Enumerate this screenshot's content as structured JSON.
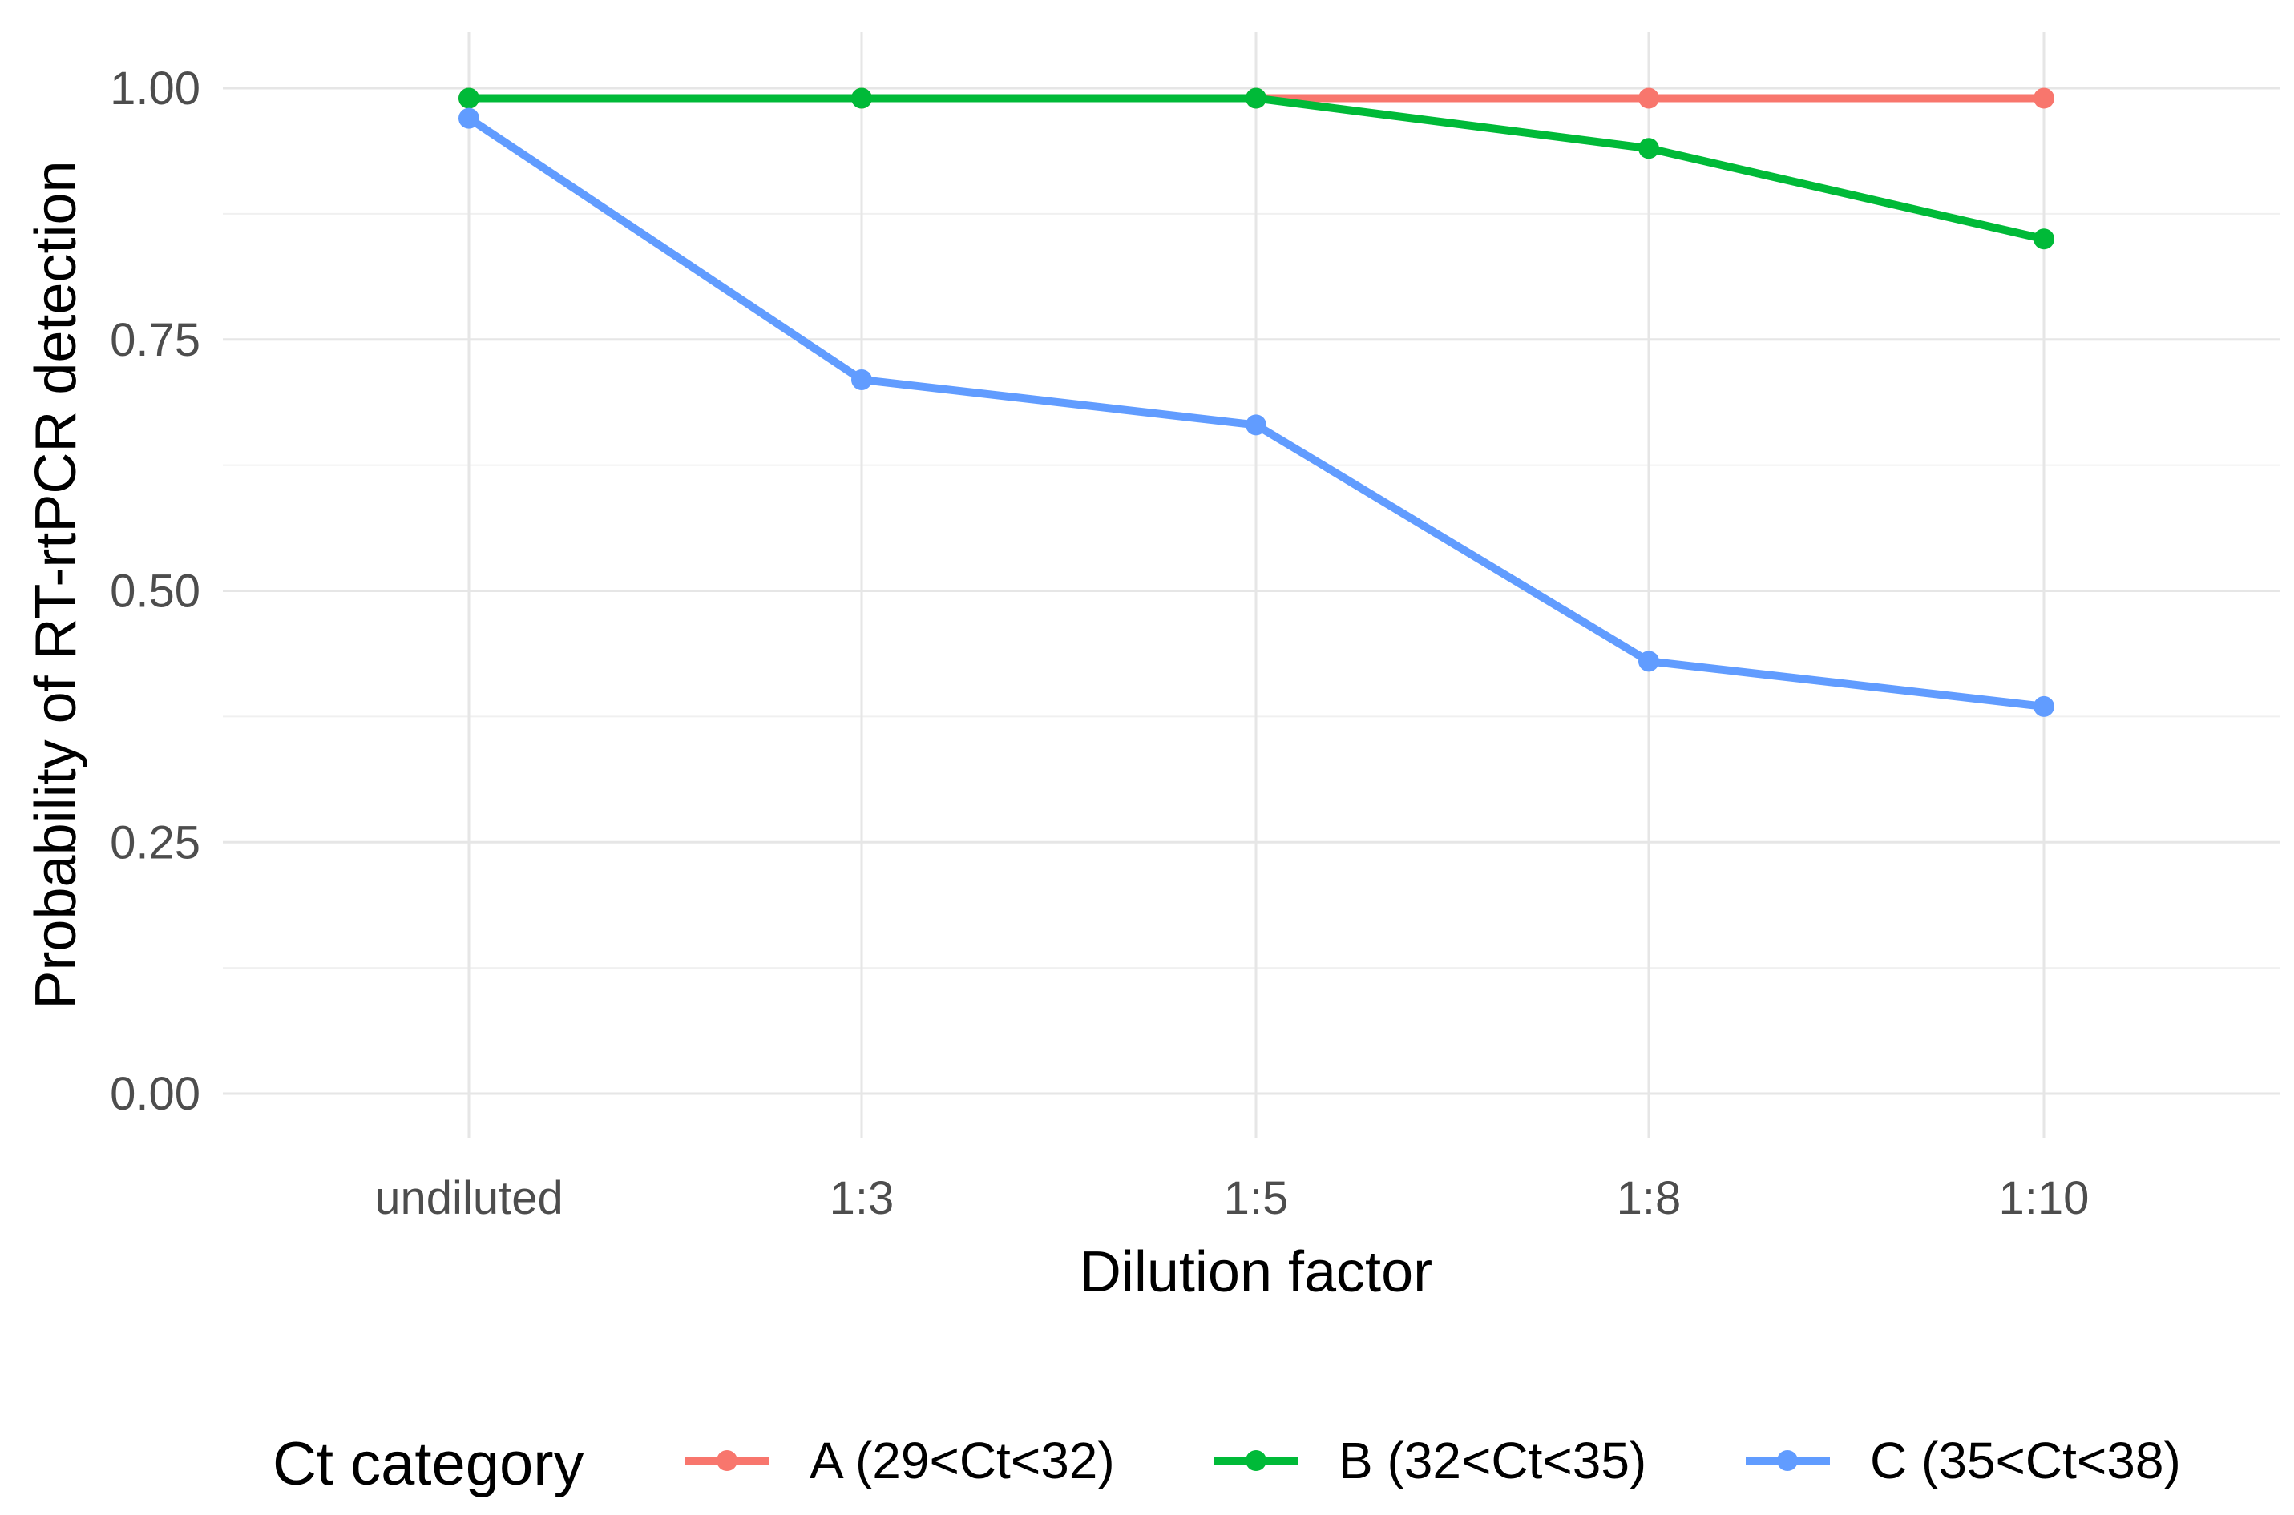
{
  "chart_data": {
    "type": "line",
    "title": "",
    "xlabel": "Dilution factor",
    "ylabel": "Probability of RT-rtPCR detection",
    "categories": [
      "undiluted",
      "1:3",
      "1:5",
      "1:8",
      "1:10"
    ],
    "ylim": [
      0,
      1
    ],
    "yticks": [
      "0.00",
      "0.25",
      "0.50",
      "0.75",
      "1.00"
    ],
    "grid": true,
    "legend": {
      "title": "Ct category",
      "position": "bottom"
    },
    "series": [
      {
        "name": "A (29<Ct<32)",
        "color": "#F8766D",
        "values": [
          0.99,
          0.99,
          0.99,
          0.99,
          0.99
        ]
      },
      {
        "name": "B (32<Ct<35)",
        "color": "#00BA38",
        "values": [
          0.99,
          0.99,
          0.99,
          0.94,
          0.85
        ]
      },
      {
        "name": "C (35<Ct<38)",
        "color": "#619CFF",
        "values": [
          0.97,
          0.71,
          0.665,
          0.43,
          0.385
        ]
      }
    ]
  }
}
